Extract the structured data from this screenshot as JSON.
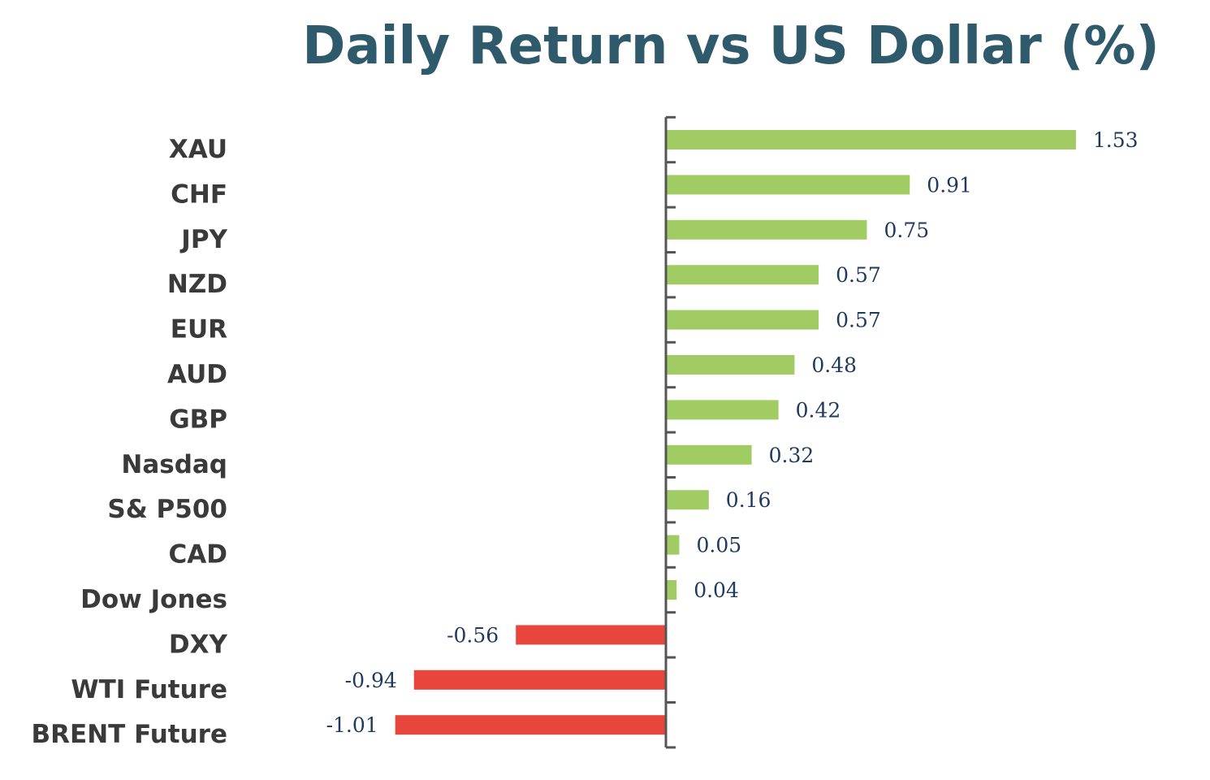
{
  "chart_data": {
    "type": "bar",
    "orientation": "horizontal",
    "title": "Daily Return vs US Dollar (%)",
    "categories": [
      "XAU",
      "CHF",
      "JPY",
      "NZD",
      "EUR",
      "AUD",
      "GBP",
      "Nasdaq",
      "S& P500",
      "CAD",
      "Dow Jones",
      "DXY",
      "WTI Future",
      "BRENT Future"
    ],
    "values": [
      1.53,
      0.91,
      0.75,
      0.57,
      0.57,
      0.48,
      0.42,
      0.32,
      0.16,
      0.05,
      0.04,
      -0.56,
      -0.94,
      -1.01
    ],
    "value_labels": [
      "1.53",
      "0.91",
      "0.75",
      "0.57",
      "0.57",
      "0.48",
      "0.42",
      "0.32",
      "0.16",
      "0.05",
      "0.04",
      "-0.56",
      "-0.94",
      "-1.01"
    ],
    "positive_color": "#a0cc63",
    "negative_color": "#e8463d",
    "axis_color": "#555555",
    "grid": false,
    "legend": "none"
  }
}
